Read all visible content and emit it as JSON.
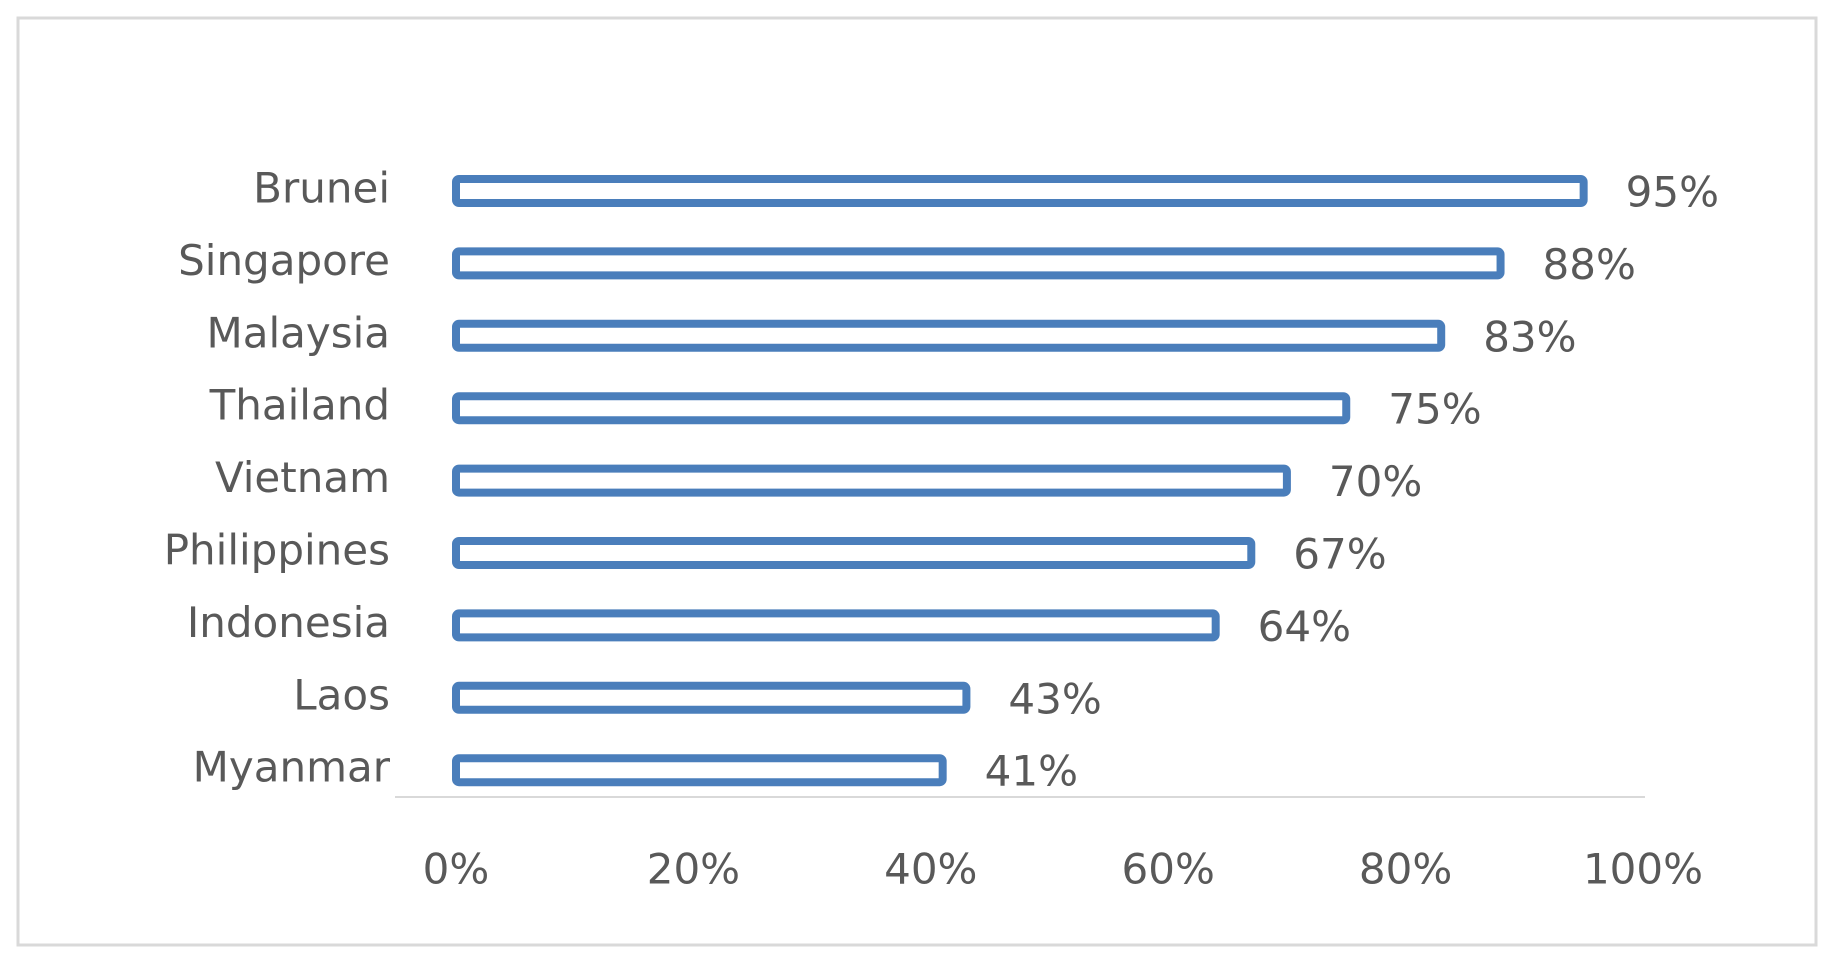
{
  "chart_data": {
    "type": "bar",
    "orientation": "horizontal",
    "categories": [
      "Brunei",
      "Singapore",
      "Malaysia",
      "Thailand",
      "Vietnam",
      "Philippines",
      "Indonesia",
      "Laos",
      "Myanmar"
    ],
    "values": [
      95,
      88,
      83,
      75,
      70,
      67,
      64,
      43,
      41
    ],
    "value_labels": [
      "95%",
      "88%",
      "83%",
      "75%",
      "70%",
      "67%",
      "64%",
      "43%",
      "41%"
    ],
    "color": "#4a7ebb",
    "xlim": [
      0,
      100
    ],
    "xticks": [
      {
        "value": 0,
        "label": "0%"
      },
      {
        "value": 20,
        "label": "20%"
      },
      {
        "value": 40,
        "label": "40%"
      },
      {
        "value": 60,
        "label": "60%"
      },
      {
        "value": 80,
        "label": "80%"
      },
      {
        "value": 100,
        "label": "100%"
      }
    ],
    "grid": false
  }
}
